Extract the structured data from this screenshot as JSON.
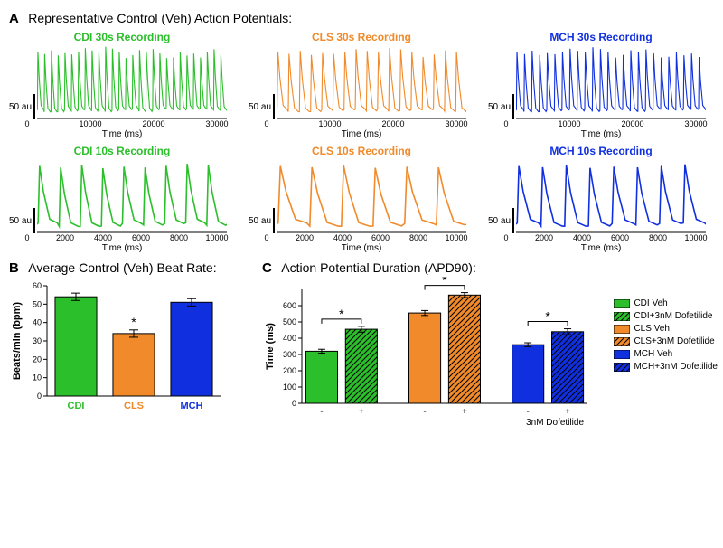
{
  "colors": {
    "CDI": "#2bbf2b",
    "CLS": "#f08a2a",
    "MCH": "#1030e0",
    "black": "#000000",
    "axis": "#000000",
    "bg": "#ffffff"
  },
  "panelA": {
    "label": "A",
    "title": "Representative Control (Veh) Action Potentials:",
    "scalebar_label": "50 au",
    "x_label": "Time (ms)",
    "rows": [
      {
        "duration_ms": 30000,
        "x_ticks": [
          0,
          10000,
          20000,
          30000
        ],
        "cells": [
          {
            "id": "CDI",
            "title": "CDI 30s Recording",
            "n_spikes": 28,
            "amp_jitter": 0.1,
            "base_jitter": 0.22,
            "lw": 1.1
          },
          {
            "id": "CLS",
            "title": "CLS 30s Recording",
            "n_spikes": 17,
            "amp_jitter": 0.08,
            "base_jitter": 0.2,
            "lw": 1.1
          },
          {
            "id": "MCH",
            "title": "MCH 30s Recording",
            "n_spikes": 25,
            "amp_jitter": 0.09,
            "base_jitter": 0.2,
            "lw": 1.1
          }
        ]
      },
      {
        "duration_ms": 10000,
        "x_ticks": [
          0,
          2000,
          4000,
          6000,
          8000,
          10000
        ],
        "cells": [
          {
            "id": "CDI",
            "title": "CDI 10s Recording",
            "n_spikes": 9,
            "amp_jitter": 0.06,
            "base_jitter": 0.3,
            "lw": 1.6
          },
          {
            "id": "CLS",
            "title": "CLS 10s Recording",
            "n_spikes": 6,
            "amp_jitter": 0.05,
            "base_jitter": 0.28,
            "lw": 1.6
          },
          {
            "id": "MCH",
            "title": "MCH 10s Recording",
            "n_spikes": 8,
            "amp_jitter": 0.05,
            "base_jitter": 0.28,
            "lw": 1.6
          }
        ]
      }
    ]
  },
  "panelB": {
    "label": "B",
    "title": "Average Control (Veh) Beat Rate:",
    "type": "bar",
    "ylabel": "Beats/min (bpm)",
    "ylim": [
      0,
      60
    ],
    "yticks": [
      0,
      10,
      20,
      30,
      40,
      50,
      60
    ],
    "categories": [
      "CDI",
      "CLS",
      "MCH"
    ],
    "values": [
      54,
      34,
      51
    ],
    "errors": [
      2,
      2,
      2
    ],
    "bar_colors": [
      "#2bbf2b",
      "#f08a2a",
      "#1030e0"
    ],
    "label_colors": [
      "#2bbf2b",
      "#f08a2a",
      "#1030e0"
    ],
    "sig": [
      false,
      true,
      false
    ],
    "bar_width": 0.72,
    "label_fontsize": 11,
    "tick_fontsize": 9
  },
  "panelC": {
    "label": "C",
    "title": "Action Potential Duration (APD90):",
    "type": "grouped-bar",
    "ylabel": "Time (ms)",
    "ylim": [
      0,
      700
    ],
    "yticks": [
      0,
      100,
      200,
      300,
      400,
      500,
      600
    ],
    "groups": [
      "CDI",
      "CLS",
      "MCH"
    ],
    "conditions": [
      "-",
      "+"
    ],
    "condition_label": "3nM Dofetilide",
    "values": [
      [
        320,
        455
      ],
      [
        555,
        665
      ],
      [
        360,
        440
      ]
    ],
    "errors": [
      [
        12,
        18
      ],
      [
        15,
        15
      ],
      [
        12,
        18
      ]
    ],
    "fills": [
      "#2bbf2b",
      "#f08a2a",
      "#1030e0"
    ],
    "hatched_second": true,
    "sig_pairs": [
      [
        0,
        1,
        "*"
      ],
      [
        2,
        3,
        "*"
      ],
      [
        4,
        5,
        "*"
      ]
    ],
    "legend": [
      {
        "label": "CDI Veh",
        "fill": "#2bbf2b",
        "hatch": false
      },
      {
        "label": "CDI+3nM Dofetilide",
        "fill": "#2bbf2b",
        "hatch": true
      },
      {
        "label": "CLS Veh",
        "fill": "#f08a2a",
        "hatch": false
      },
      {
        "label": "CLS+3nM Dofetilide",
        "fill": "#f08a2a",
        "hatch": true
      },
      {
        "label": "MCH Veh",
        "fill": "#1030e0",
        "hatch": false
      },
      {
        "label": "MCH+3nM Dofetilide",
        "fill": "#1030e0",
        "hatch": true
      }
    ],
    "bar_width": 0.8,
    "group_gap": 0.6,
    "label_fontsize": 11,
    "tick_fontsize": 9
  }
}
